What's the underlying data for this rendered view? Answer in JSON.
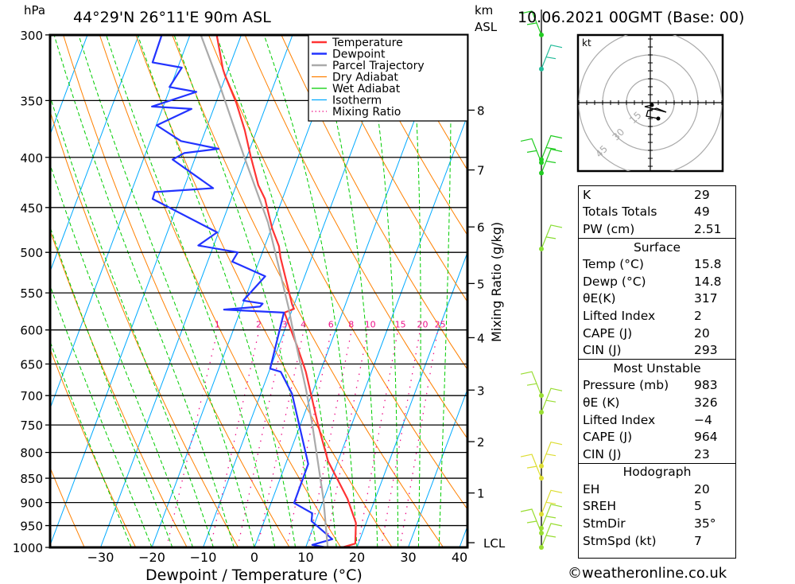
{
  "header": {
    "pressure_unit": "hPa",
    "location": "44°29'N 26°11'E 90m ASL",
    "km_label": "km",
    "asl_label": "ASL",
    "datetime": "10.06.2021 00GMT (Base: 00)"
  },
  "footer": {
    "copyright": "©weatheronline.co.uk"
  },
  "chart_data": {
    "type": "line",
    "title": "44°29'N 26°11'E 90m ASL",
    "xlabel": "Dewpoint / Temperature (°C)",
    "ylabel": "hPa",
    "right_label": "Mixing Ratio (g/kg)",
    "xlim": [
      -40,
      40
    ],
    "ylim": [
      1000,
      300
    ],
    "x_ticks": [
      "-30",
      "-20",
      "-10",
      "0",
      "10",
      "20",
      "30",
      "40"
    ],
    "x_tick_values": [
      -30,
      -20,
      -10,
      0,
      10,
      20,
      30,
      40
    ],
    "pressure_ticks": [
      300,
      350,
      400,
      450,
      500,
      550,
      600,
      650,
      700,
      750,
      800,
      850,
      900,
      950,
      1000
    ],
    "km_ticks": [
      {
        "label": "8",
        "p": 358
      },
      {
        "label": "7",
        "p": 412
      },
      {
        "label": "6",
        "p": 471
      },
      {
        "label": "5",
        "p": 538
      },
      {
        "label": "4",
        "p": 611
      },
      {
        "label": "3",
        "p": 691
      },
      {
        "label": "2",
        "p": 780
      },
      {
        "label": "1",
        "p": 880
      },
      {
        "label": "LCL",
        "p": 989
      }
    ],
    "legend": [
      "Temperature",
      "Dewpoint",
      "Parcel Trajectory",
      "Dry Adiabat",
      "Wet Adiabat",
      "Isotherm",
      "Mixing Ratio"
    ],
    "legend_placement": "top-right",
    "mixing_ratio_labels": [
      1,
      2,
      3,
      4,
      6,
      8,
      10,
      15,
      20,
      25
    ],
    "series": [
      {
        "name": "Temperature",
        "color": "#ff3333",
        "points": [
          [
            300,
            -44.8
          ],
          [
            325,
            -41.1
          ],
          [
            330,
            -40.2
          ],
          [
            352,
            -36.0
          ],
          [
            375,
            -32.4
          ],
          [
            399,
            -29.3
          ],
          [
            427,
            -25.7
          ],
          [
            441,
            -23.4
          ],
          [
            473,
            -19.8
          ],
          [
            493,
            -17.2
          ],
          [
            506,
            -16.1
          ],
          [
            565,
            -10.4
          ],
          [
            571,
            -9.7
          ],
          [
            576,
            -11.3
          ],
          [
            591,
            -9.7
          ],
          [
            621,
            -6.6
          ],
          [
            653,
            -3.6
          ],
          [
            662,
            -2.8
          ],
          [
            749,
            3.4
          ],
          [
            817,
            8.1
          ],
          [
            860,
            11.9
          ],
          [
            892,
            14.6
          ],
          [
            944,
            18.0
          ],
          [
            991,
            19.4
          ],
          [
            1000,
            17.1
          ]
        ]
      },
      {
        "name": "Dewpoint",
        "color": "#2233ff",
        "points": [
          [
            300,
            -55.5
          ],
          [
            320,
            -55.3
          ],
          [
            324,
            -49.2
          ],
          [
            339,
            -50.2
          ],
          [
            343,
            -44.6
          ],
          [
            355,
            -52.2
          ],
          [
            357,
            -44.3
          ],
          [
            371,
            -49.9
          ],
          [
            385,
            -44.0
          ],
          [
            392,
            -36.1
          ],
          [
            396,
            -42.5
          ],
          [
            402,
            -44.3
          ],
          [
            430,
            -34.3
          ],
          [
            434,
            -45.4
          ],
          [
            441,
            -45.3
          ],
          [
            477,
            -30.3
          ],
          [
            492,
            -33.0
          ],
          [
            500,
            -24.8
          ],
          [
            511,
            -25.2
          ],
          [
            529,
            -17.7
          ],
          [
            560,
            -20.2
          ],
          [
            564,
            -16.2
          ],
          [
            568,
            -16.5
          ],
          [
            572,
            -23.3
          ],
          [
            576,
            -11.4
          ],
          [
            657,
            -10.0
          ],
          [
            662,
            -7.7
          ],
          [
            697,
            -3.9
          ],
          [
            822,
            4.4
          ],
          [
            901,
            4.5
          ],
          [
            923,
            8.8
          ],
          [
            940,
            9.2
          ],
          [
            981,
            14.6
          ],
          [
            994,
            11.1
          ],
          [
            1000,
            14.0
          ]
        ]
      },
      {
        "name": "Parcel Trajectory",
        "color": "#aaaaaa",
        "points": [
          [
            1000,
            14.3
          ],
          [
            892,
            9.9
          ],
          [
            749,
            2.3
          ],
          [
            691,
            -1.4
          ],
          [
            591,
            -9.1
          ],
          [
            570,
            -10.8
          ],
          [
            466,
            -21.1
          ],
          [
            399,
            -30.6
          ],
          [
            339,
            -40.3
          ],
          [
            300,
            -47.9
          ]
        ]
      }
    ],
    "wind_levels": [
      {
        "p": 300,
        "color": "#22cc22"
      },
      {
        "p": 325,
        "color": "#22bb99"
      },
      {
        "p": 402,
        "color": "#22cc22"
      },
      {
        "p": 405,
        "color": "#22cc22"
      },
      {
        "p": 415,
        "color": "#22cc22"
      },
      {
        "p": 496,
        "color": "#88dd33"
      },
      {
        "p": 700,
        "color": "#99dd33"
      },
      {
        "p": 728,
        "color": "#99dd33"
      },
      {
        "p": 826,
        "color": "#dddd33"
      },
      {
        "p": 850,
        "color": "#dddd33"
      },
      {
        "p": 925,
        "color": "#dddd33"
      },
      {
        "p": 956,
        "color": "#99dd33"
      },
      {
        "p": 967,
        "color": "#99dd33"
      },
      {
        "p": 1000,
        "color": "#99dd33"
      }
    ],
    "hodograph": {
      "unit": "kt",
      "rings": [
        "15",
        "30",
        "45"
      ]
    }
  },
  "table": {
    "indices": [
      {
        "k": "K",
        "v": "29"
      },
      {
        "k": "Totals Totals",
        "v": "49"
      },
      {
        "k": "PW (cm)",
        "v": "2.51"
      }
    ],
    "surface": {
      "title": "Surface",
      "rows": [
        {
          "k": "Temp (°C)",
          "v": "15.8"
        },
        {
          "k": "Dewp (°C)",
          "v": "14.8"
        },
        {
          "k": "θE(K)",
          "v": "317"
        },
        {
          "k": "Lifted Index",
          "v": "2"
        },
        {
          "k": "CAPE (J)",
          "v": "20"
        },
        {
          "k": "CIN (J)",
          "v": "293"
        }
      ]
    },
    "most_unstable": {
      "title": "Most Unstable",
      "rows": [
        {
          "k": "Pressure (mb)",
          "v": "983"
        },
        {
          "k": "θE (K)",
          "v": "326"
        },
        {
          "k": "Lifted Index",
          "v": "−4"
        },
        {
          "k": "CAPE (J)",
          "v": "964"
        },
        {
          "k": "CIN (J)",
          "v": "23"
        }
      ]
    },
    "hodograph": {
      "title": "Hodograph",
      "rows": [
        {
          "k": "EH",
          "v": "20"
        },
        {
          "k": "SREH",
          "v": "5"
        },
        {
          "k": "StmDir",
          "v": "35°"
        },
        {
          "k": "StmSpd (kt)",
          "v": "7"
        }
      ]
    }
  },
  "colors": {
    "dry": "#ff8000",
    "wet": "#00cc00",
    "iso": "#00aaff",
    "mix": "#ee1188"
  }
}
